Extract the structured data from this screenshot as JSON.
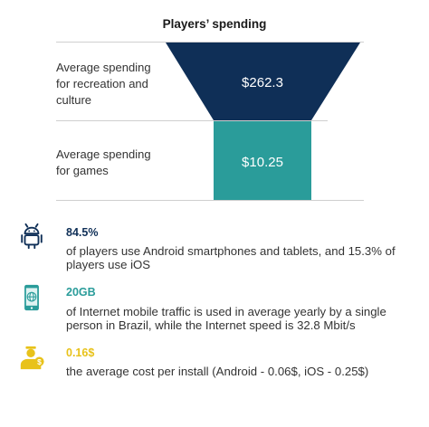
{
  "title": "Players’ spending",
  "funnel": {
    "top": {
      "label_lines": [
        "Average spending",
        "for recreation and",
        "culture"
      ],
      "value": "$262.3",
      "color": "#0f2f57"
    },
    "bottom": {
      "label_lines": [
        "Average spending",
        "for games"
      ],
      "value": "$10.25",
      "color": "#2a9c9a"
    }
  },
  "facts": [
    {
      "icon": "android-icon",
      "value": "84.5%",
      "value_color": "#0f2f57",
      "text_lines": [
        "of players use Android smartphones and tablets, and 15.3% of",
        "players use iOS"
      ]
    },
    {
      "icon": "globe-phone-icon",
      "value": "20GB",
      "value_color": "#2a9c9a",
      "text_lines": [
        "of Internet mobile traffic is used in average yearly by a single",
        "person in Brazil, while the Internet speed is 32.8 Mbit/s"
      ]
    },
    {
      "icon": "person-dollar-icon",
      "value": "0.16$",
      "value_color": "#e8c21a",
      "text_lines": [
        "the average cost per install (Android - 0.06$, iOS - 0.25$)"
      ]
    }
  ]
}
